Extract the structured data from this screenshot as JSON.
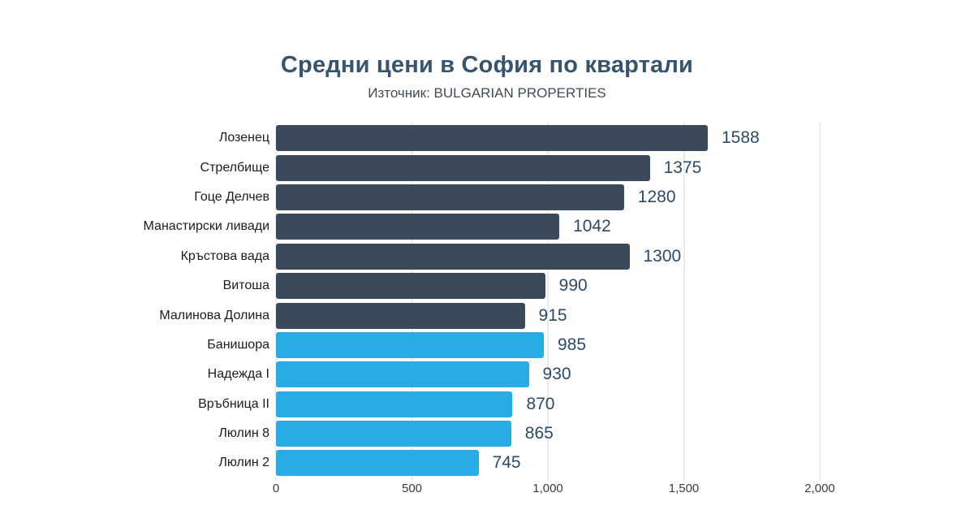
{
  "header": {
    "title": "Средни цени в София по квартали",
    "subtitle": "Източник: BULGARIAN PROPERTIES"
  },
  "chart_data": {
    "type": "bar",
    "orientation": "horizontal",
    "title": "Средни цени в София по квартали",
    "subtitle": "Източник: BULGARIAN PROPERTIES",
    "categories": [
      "Лозенец",
      "Стрелбище",
      "Гоце Делчев",
      "Манастирски ливади",
      "Кръстова вада",
      "Витоша",
      "Малинова Долина",
      "Банишора",
      "Надежда I",
      "Връбница II",
      "Люлин 8",
      "Люлин 2"
    ],
    "values": [
      1588,
      1375,
      1280,
      1042,
      1300,
      990,
      915,
      985,
      930,
      870,
      865,
      745
    ],
    "series_colors": [
      "dark",
      "dark",
      "dark",
      "dark",
      "dark",
      "dark",
      "dark",
      "light",
      "light",
      "light",
      "light",
      "light"
    ],
    "colors": {
      "dark": "#3B4A5B",
      "light": "#29ACE3"
    },
    "xlim": [
      0,
      2000
    ],
    "x_ticks": [
      0,
      500,
      1000,
      1500,
      2000
    ],
    "x_tick_labels": [
      "0",
      "500",
      "1,000",
      "1,500",
      "2,000"
    ],
    "grid": "vertical",
    "legend": "none"
  }
}
